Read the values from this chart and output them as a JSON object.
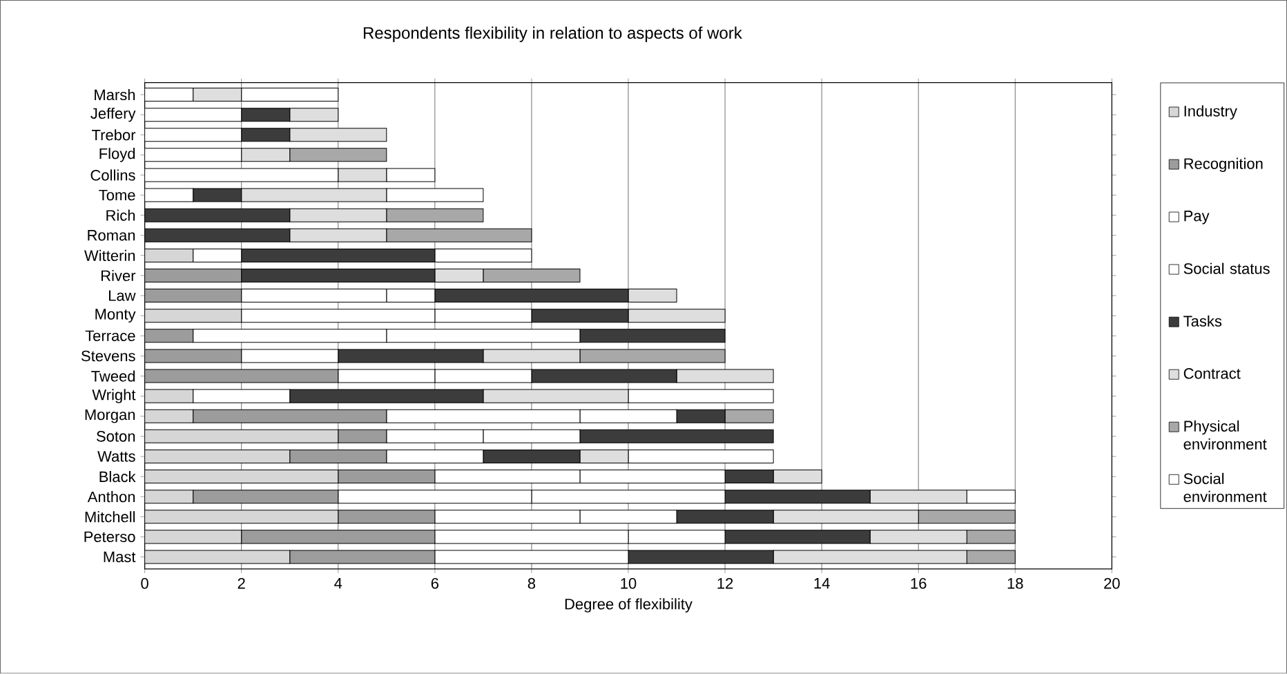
{
  "chart_data": {
    "type": "bar",
    "orientation": "horizontal",
    "stacked": true,
    "title": "Respondents flexibility in relation to aspects of work",
    "xlabel": "Degree of flexibility",
    "categories": [
      "Marsh",
      "Jeffery",
      "Trebor",
      "Floyd",
      "Collins",
      "Tome",
      "Rich",
      "Roman",
      "Witterin",
      "River",
      "Law",
      "Monty",
      "Terrace",
      "Stevens",
      "Tweed",
      "Wright",
      "Morgan",
      "Soton",
      "Watts",
      "Black",
      "Anthon",
      "Mitchell",
      "Peterso",
      "Mast"
    ],
    "series": [
      {
        "name": "Industry",
        "color": "#d6d6d6",
        "values": [
          0,
          0,
          0,
          0,
          0,
          0,
          0,
          0,
          1,
          0,
          0,
          2,
          0,
          0,
          0,
          1,
          1,
          4,
          3,
          4,
          1,
          4,
          2,
          3
        ]
      },
      {
        "name": "Recognition",
        "color": "#9c9c9c",
        "values": [
          0,
          0,
          0,
          0,
          0,
          0,
          0,
          0,
          0,
          2,
          2,
          0,
          1,
          2,
          4,
          0,
          4,
          1,
          2,
          2,
          3,
          2,
          4,
          3
        ]
      },
      {
        "name": "Pay",
        "color": "#ffffff",
        "values": [
          1,
          2,
          2,
          2,
          4,
          1,
          0,
          0,
          1,
          0,
          3,
          4,
          4,
          2,
          2,
          2,
          4,
          2,
          2,
          3,
          4,
          3,
          4,
          4
        ]
      },
      {
        "name": "Social status",
        "color": "#ffffff",
        "values": [
          0,
          0,
          0,
          0,
          0,
          0,
          0,
          0,
          0,
          0,
          1,
          2,
          4,
          0,
          2,
          0,
          2,
          2,
          0,
          3,
          4,
          2,
          2,
          0
        ]
      },
      {
        "name": "Tasks",
        "color": "#3c3c3c",
        "values": [
          0,
          1,
          1,
          0,
          0,
          1,
          3,
          3,
          4,
          4,
          4,
          2,
          3,
          3,
          3,
          4,
          1,
          4,
          2,
          1,
          3,
          2,
          3,
          3
        ]
      },
      {
        "name": "Contract",
        "color": "#dedede",
        "values": [
          1,
          1,
          2,
          1,
          1,
          3,
          2,
          2,
          0,
          1,
          1,
          2,
          0,
          2,
          2,
          3,
          0,
          0,
          1,
          1,
          2,
          3,
          2,
          4
        ]
      },
      {
        "name": "Physical environment",
        "color": "#a8a8a8",
        "values": [
          0,
          0,
          0,
          2,
          0,
          0,
          2,
          3,
          0,
          2,
          0,
          0,
          0,
          3,
          0,
          0,
          1,
          0,
          0,
          0,
          0,
          2,
          1,
          1
        ]
      },
      {
        "name": "Social environment",
        "color": "#ffffff",
        "values": [
          2,
          0,
          0,
          0,
          1,
          2,
          0,
          0,
          2,
          0,
          0,
          0,
          0,
          0,
          0,
          3,
          0,
          0,
          3,
          0,
          1,
          0,
          0,
          0
        ]
      }
    ],
    "xlim": [
      0,
      20
    ],
    "xticks": [
      0,
      2,
      4,
      6,
      8,
      10,
      12,
      14,
      16,
      18,
      20
    ],
    "grid": "x",
    "legend": "right"
  }
}
